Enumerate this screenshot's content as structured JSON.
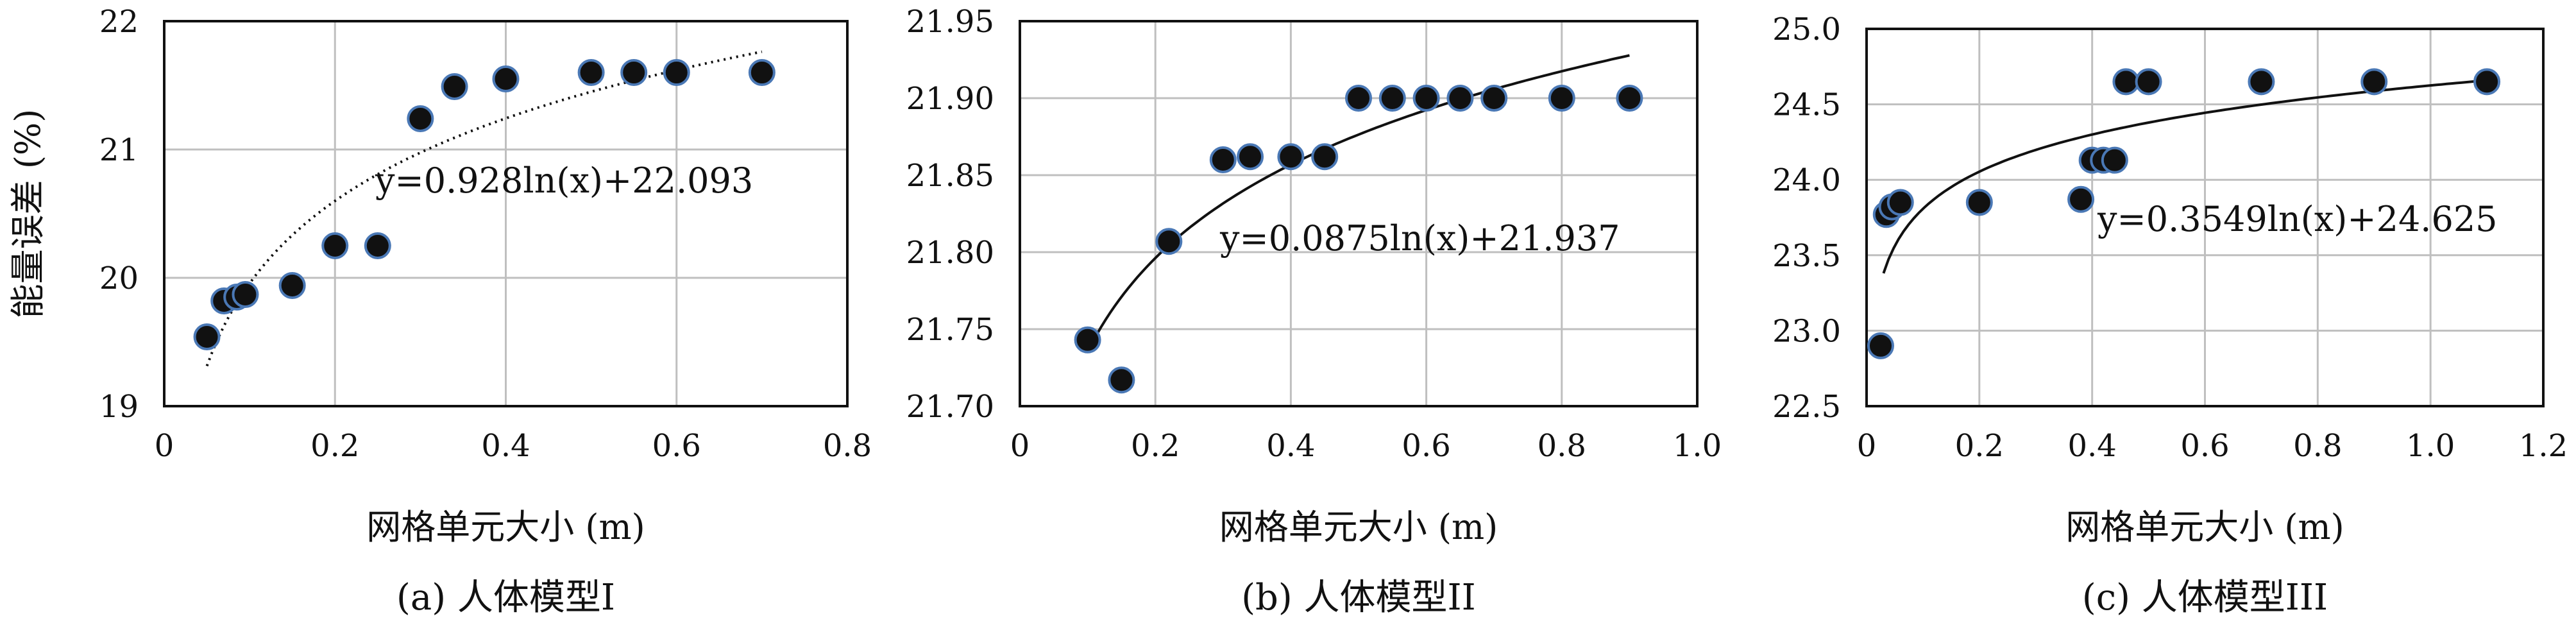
{
  "chart_data": [
    {
      "type": "scatter",
      "caption": "(a) 人体模型I",
      "xlabel": "网格单元大小 (m)",
      "ylabel": "能量误差 (%)",
      "xlim": [
        0,
        0.8
      ],
      "ylim": [
        19,
        22
      ],
      "xticks": [
        "0",
        "0.2",
        "0.4",
        "0.6",
        "0.8"
      ],
      "yticks": [
        "19",
        "20",
        "21",
        "22"
      ],
      "grid": true,
      "points": [
        {
          "x": 0.05,
          "y": 19.54
        },
        {
          "x": 0.07,
          "y": 19.82
        },
        {
          "x": 0.085,
          "y": 19.85
        },
        {
          "x": 0.095,
          "y": 19.87
        },
        {
          "x": 0.15,
          "y": 19.94
        },
        {
          "x": 0.2,
          "y": 20.25
        },
        {
          "x": 0.25,
          "y": 20.25
        },
        {
          "x": 0.3,
          "y": 21.24
        },
        {
          "x": 0.34,
          "y": 21.49
        },
        {
          "x": 0.4,
          "y": 21.55
        },
        {
          "x": 0.5,
          "y": 21.6
        },
        {
          "x": 0.55,
          "y": 21.6
        },
        {
          "x": 0.6,
          "y": 21.6
        },
        {
          "x": 0.7,
          "y": 21.6
        }
      ],
      "trendline": {
        "a": 0.928,
        "b": 22.093,
        "style": "dotted",
        "x_from": 0.05,
        "x_to": 0.7
      },
      "equation": "y=0.928ln(x)+22.093"
    },
    {
      "type": "scatter",
      "caption": "(b) 人体模型II",
      "xlabel": "网格单元大小 (m)",
      "ylabel": "",
      "xlim": [
        0,
        1.0
      ],
      "ylim": [
        21.7,
        21.95
      ],
      "xticks": [
        "0",
        "0.2",
        "0.4",
        "0.6",
        "0.8",
        "1.0"
      ],
      "yticks": [
        "21.70",
        "21.75",
        "21.80",
        "21.85",
        "21.90",
        "21.95"
      ],
      "grid": true,
      "points": [
        {
          "x": 0.1,
          "y": 21.743
        },
        {
          "x": 0.15,
          "y": 21.717
        },
        {
          "x": 0.22,
          "y": 21.807
        },
        {
          "x": 0.3,
          "y": 21.86
        },
        {
          "x": 0.34,
          "y": 21.862
        },
        {
          "x": 0.4,
          "y": 21.862
        },
        {
          "x": 0.45,
          "y": 21.862
        },
        {
          "x": 0.5,
          "y": 21.9
        },
        {
          "x": 0.55,
          "y": 21.9
        },
        {
          "x": 0.6,
          "y": 21.9
        },
        {
          "x": 0.65,
          "y": 21.9
        },
        {
          "x": 0.7,
          "y": 21.9
        },
        {
          "x": 0.8,
          "y": 21.9
        },
        {
          "x": 0.9,
          "y": 21.9
        }
      ],
      "trendline": {
        "a": 0.0875,
        "b": 21.937,
        "style": "solid",
        "x_from": 0.1,
        "x_to": 0.9
      },
      "equation": "y=0.0875ln(x)+21.937"
    },
    {
      "type": "scatter",
      "caption": "(c) 人体模型III",
      "xlabel": "网格单元大小 (m)",
      "ylabel": "",
      "xlim": [
        0,
        1.2
      ],
      "ylim": [
        22.5,
        25.0
      ],
      "xticks": [
        "0",
        "0.2",
        "0.4",
        "0.6",
        "0.8",
        "1.0",
        "1.2"
      ],
      "yticks": [
        "22.5",
        "23.0",
        "23.5",
        "24.0",
        "24.5",
        "25.0"
      ],
      "grid": true,
      "points": [
        {
          "x": 0.025,
          "y": 22.9
        },
        {
          "x": 0.035,
          "y": 23.77
        },
        {
          "x": 0.045,
          "y": 23.82
        },
        {
          "x": 0.06,
          "y": 23.85
        },
        {
          "x": 0.2,
          "y": 23.85
        },
        {
          "x": 0.38,
          "y": 23.87
        },
        {
          "x": 0.4,
          "y": 24.13
        },
        {
          "x": 0.42,
          "y": 24.13
        },
        {
          "x": 0.44,
          "y": 24.13
        },
        {
          "x": 0.46,
          "y": 24.65
        },
        {
          "x": 0.5,
          "y": 24.65
        },
        {
          "x": 0.7,
          "y": 24.65
        },
        {
          "x": 0.9,
          "y": 24.65
        },
        {
          "x": 1.1,
          "y": 24.65
        }
      ],
      "trendline": {
        "a": 0.3549,
        "b": 24.625,
        "style": "solid",
        "x_from": 0.03,
        "x_to": 1.1
      },
      "equation": "y=0.3549ln(x)+24.625"
    }
  ]
}
